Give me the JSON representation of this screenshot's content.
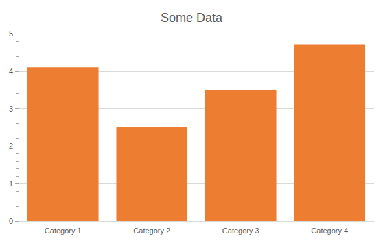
{
  "chart_data": {
    "type": "bar",
    "title": "Some Data",
    "categories": [
      "Category 1",
      "Category 2",
      "Category 3",
      "Category 4"
    ],
    "values": [
      4.1,
      2.5,
      3.5,
      4.7
    ],
    "color": "#ed7d31",
    "ylim": [
      0,
      5
    ],
    "yticks": [
      0,
      1,
      2,
      3,
      4,
      5
    ],
    "grid": true
  }
}
